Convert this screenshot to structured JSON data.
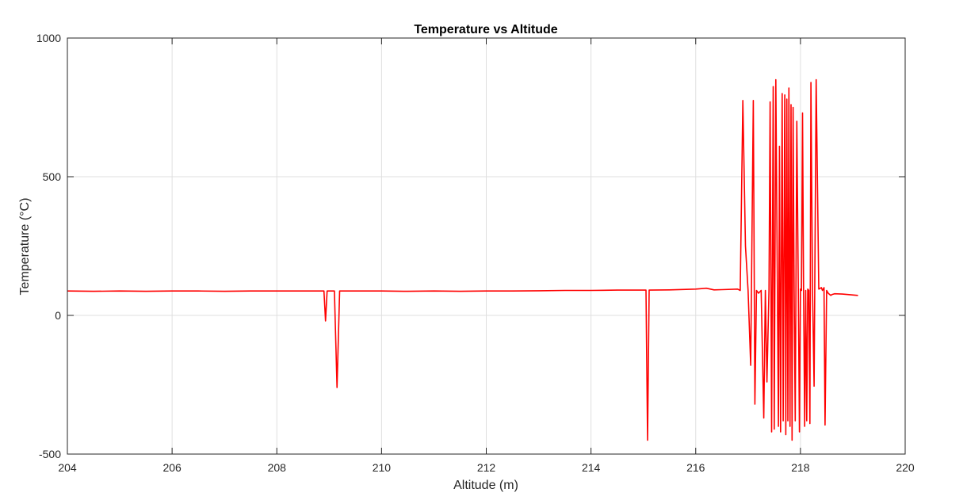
{
  "chart_data": {
    "type": "line",
    "title": "Temperature vs Altitude",
    "xlabel": "Altitude (m)",
    "ylabel": "Temperature (°C)",
    "xlim": [
      204,
      220
    ],
    "ylim": [
      -500,
      1000
    ],
    "xticks": [
      204,
      206,
      208,
      210,
      212,
      214,
      216,
      218,
      220
    ],
    "yticks": [
      -500,
      0,
      500,
      1000
    ],
    "grid": true,
    "series_color": "#ff0000",
    "series": [
      {
        "x": [
          204.0,
          204.5,
          205.0,
          205.5,
          206.0,
          206.5,
          207.0,
          207.5,
          208.0,
          208.5,
          208.9,
          208.93,
          208.96,
          209.0,
          209.1,
          209.15,
          209.2,
          209.5,
          210.0,
          210.5,
          211.0,
          211.5,
          212.0,
          212.5,
          213.0,
          213.5,
          214.0,
          214.5,
          215.0,
          215.05,
          215.08,
          215.11,
          215.5,
          216.0,
          216.2,
          216.35,
          216.5,
          216.8,
          216.85,
          216.9,
          216.95,
          217.0,
          217.05,
          217.1,
          217.13,
          217.16,
          217.2,
          217.25,
          217.3,
          217.33,
          217.36,
          217.4,
          217.42,
          217.45,
          217.48,
          217.5,
          217.53,
          217.56,
          217.58,
          217.6,
          217.62,
          217.65,
          217.67,
          217.7,
          217.72,
          217.74,
          217.76,
          217.78,
          217.8,
          217.82,
          217.84,
          217.86,
          217.88,
          217.9,
          217.93,
          217.96,
          217.98,
          218.0,
          218.02,
          218.04,
          218.06,
          218.08,
          218.1,
          218.12,
          218.14,
          218.16,
          218.18,
          218.2,
          218.23,
          218.26,
          218.3,
          218.35,
          218.4,
          218.42,
          218.45,
          218.47,
          218.5,
          218.53,
          218.56,
          218.58,
          218.6,
          218.65,
          218.8,
          219.1
        ],
        "y": [
          88,
          87,
          88,
          87,
          88,
          88,
          87,
          88,
          88,
          88,
          88,
          -20,
          88,
          88,
          88,
          -260,
          88,
          88,
          88,
          87,
          88,
          87,
          88,
          88,
          89,
          90,
          90,
          91,
          91,
          91,
          -450,
          91,
          92,
          95,
          98,
          92,
          93,
          95,
          90,
          775,
          250,
          90,
          -180,
          775,
          -320,
          90,
          80,
          90,
          -370,
          90,
          -240,
          95,
          770,
          -420,
          825,
          -410,
          850,
          90,
          -400,
          610,
          -420,
          800,
          -380,
          795,
          -430,
          780,
          -380,
          820,
          -400,
          760,
          -450,
          750,
          95,
          -380,
          700,
          90,
          -420,
          95,
          90,
          730,
          95,
          -400,
          90,
          -380,
          95,
          90,
          -390,
          840,
          90,
          -255,
          850,
          95,
          100,
          90,
          100,
          -395,
          90,
          80,
          75,
          72,
          75,
          78,
          77,
          72
        ]
      }
    ]
  }
}
